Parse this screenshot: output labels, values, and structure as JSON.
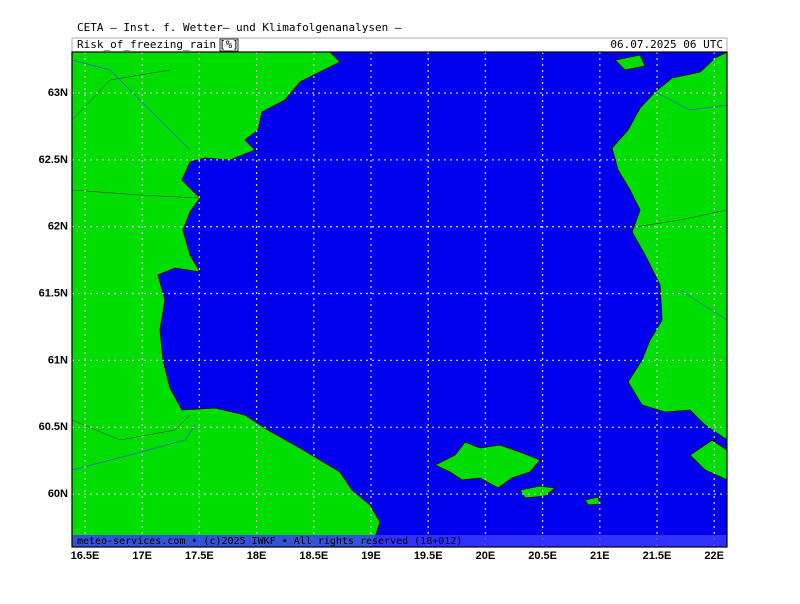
{
  "header": {
    "title": "CETA — Inst. f. Wetter— und Klimafolgenanalysen —",
    "field": "Risk_of_freezing_rain",
    "unit": "[%]",
    "valid": "06.07.2025 06 UTC"
  },
  "map": {
    "lon_labels": [
      "16.5E",
      "17E",
      "17.5E",
      "18E",
      "18.5E",
      "19E",
      "19.5E",
      "20E",
      "20.5E",
      "21E",
      "21.5E",
      "22E"
    ],
    "lat_labels": [
      "63N",
      "62.5N",
      "62N",
      "61.5N",
      "61N",
      "60.5N",
      "60N"
    ]
  },
  "footer": {
    "credit": "meteo-services.com • (c)2025 IWKF • All rights reserved (18+012)"
  }
}
